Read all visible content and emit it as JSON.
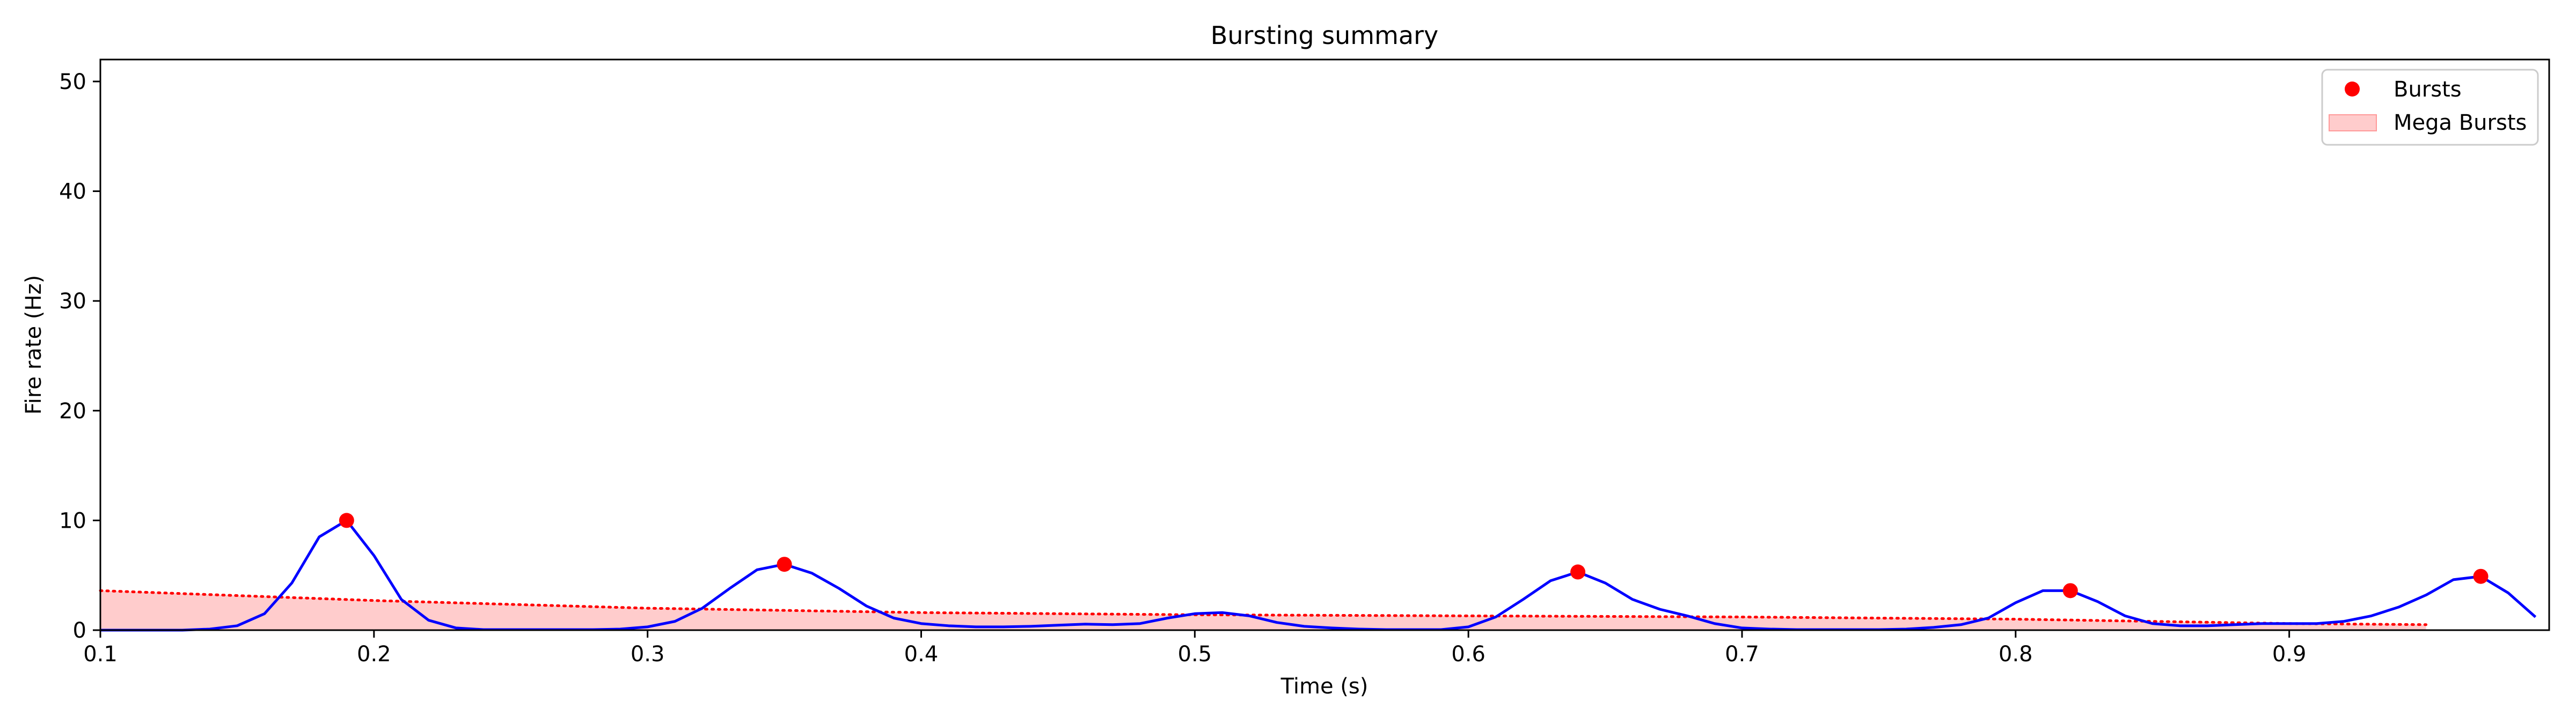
{
  "chart_data": {
    "type": "line",
    "title": "Bursting summary",
    "xlabel": "Time (s)",
    "ylabel": "Fire rate (Hz)",
    "xlim": [
      0.1,
      0.995
    ],
    "ylim": [
      0,
      52
    ],
    "xticks": [
      0.1,
      0.2,
      0.3,
      0.4,
      0.5,
      0.6,
      0.7,
      0.8,
      0.9
    ],
    "xtick_labels": [
      "0.1",
      "0.2",
      "0.3",
      "0.4",
      "0.5",
      "0.6",
      "0.7",
      "0.8",
      "0.9"
    ],
    "yticks": [
      0,
      10,
      20,
      30,
      40,
      50
    ],
    "ytick_labels": [
      "0",
      "10",
      "20",
      "30",
      "40",
      "50"
    ],
    "grid": false,
    "legend": {
      "location": "top-right",
      "entries": [
        {
          "label": "Bursts",
          "marker": "circle",
          "color": "#ff0000"
        },
        {
          "label": "Mega Bursts",
          "marker": "patch",
          "color": "#ffcccc"
        }
      ]
    },
    "series": [
      {
        "kind": "line",
        "color": "#0000ff",
        "x": [
          0.1,
          0.11,
          0.12,
          0.13,
          0.14,
          0.15,
          0.16,
          0.17,
          0.18,
          0.19,
          0.2,
          0.21,
          0.22,
          0.23,
          0.24,
          0.25,
          0.26,
          0.27,
          0.28,
          0.29,
          0.3,
          0.31,
          0.32,
          0.33,
          0.34,
          0.35,
          0.36,
          0.37,
          0.38,
          0.39,
          0.4,
          0.41,
          0.42,
          0.43,
          0.44,
          0.45,
          0.46,
          0.47,
          0.48,
          0.49,
          0.5,
          0.51,
          0.52,
          0.53,
          0.54,
          0.55,
          0.56,
          0.57,
          0.58,
          0.59,
          0.6,
          0.61,
          0.62,
          0.63,
          0.64,
          0.65,
          0.66,
          0.67,
          0.68,
          0.69,
          0.7,
          0.71,
          0.72,
          0.73,
          0.74,
          0.75,
          0.76,
          0.77,
          0.78,
          0.79,
          0.8,
          0.81,
          0.82,
          0.83,
          0.84,
          0.85,
          0.86,
          0.87,
          0.88,
          0.89,
          0.9,
          0.91,
          0.92,
          0.93,
          0.94,
          0.95,
          0.96,
          0.97,
          0.98,
          0.99
        ],
        "y": [
          0,
          0,
          0,
          0,
          0.1,
          0.4,
          1.5,
          4.3,
          8.5,
          10.0,
          6.8,
          2.8,
          0.9,
          0.2,
          0.05,
          0.05,
          0.05,
          0.05,
          0.05,
          0.1,
          0.3,
          0.8,
          2.0,
          3.8,
          5.5,
          6.0,
          5.2,
          3.8,
          2.2,
          1.1,
          0.6,
          0.4,
          0.3,
          0.3,
          0.35,
          0.45,
          0.55,
          0.5,
          0.6,
          1.1,
          1.5,
          1.6,
          1.3,
          0.7,
          0.35,
          0.2,
          0.1,
          0.05,
          0.05,
          0.05,
          0.3,
          1.2,
          2.8,
          4.5,
          5.3,
          4.3,
          2.8,
          1.9,
          1.3,
          0.6,
          0.2,
          0.1,
          0.05,
          0.05,
          0.05,
          0.05,
          0.1,
          0.25,
          0.5,
          1.1,
          2.5,
          3.6,
          3.6,
          2.6,
          1.3,
          0.6,
          0.4,
          0.4,
          0.5,
          0.6,
          0.6,
          0.6,
          0.8,
          1.3,
          2.1,
          3.2,
          4.6,
          4.9,
          3.4,
          1.2
        ]
      },
      {
        "kind": "markers",
        "name": "Bursts",
        "color": "#ff0000",
        "x": [
          0.19,
          0.35,
          0.64,
          0.82,
          0.97
        ],
        "y": [
          10.0,
          6.0,
          5.3,
          3.6,
          4.9
        ]
      },
      {
        "kind": "area",
        "name": "Mega Bursts",
        "color": "#ffcccc",
        "edge_color": "#ff0000",
        "edge_style": "dotted",
        "x": [
          0.1,
          0.2,
          0.3,
          0.4,
          0.5,
          0.6,
          0.7,
          0.8,
          0.9,
          0.95
        ],
        "y": [
          3.6,
          2.7,
          2.0,
          1.6,
          1.4,
          1.3,
          1.2,
          1.0,
          0.6,
          0.5
        ]
      }
    ]
  }
}
